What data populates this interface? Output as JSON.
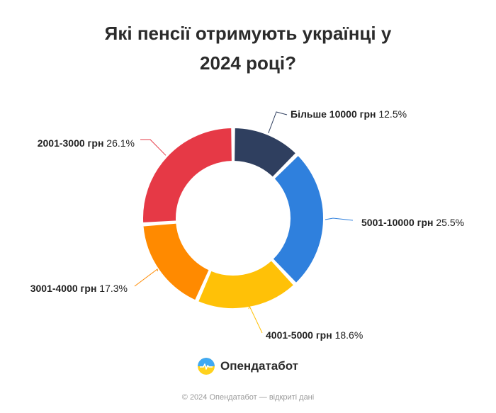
{
  "title": {
    "line1": "Які пенсії отримують українці у",
    "line2": "2024 році?"
  },
  "chart_data": {
    "type": "pie",
    "variant": "donut",
    "categories": [
      "Більше 10000 грн",
      "5001-10000 грн",
      "4001-5000 грн",
      "3001-4000 грн",
      "2001-3000 грн"
    ],
    "values": [
      12.5,
      25.5,
      18.6,
      17.3,
      26.1
    ],
    "value_labels": [
      "12.5%",
      "25.5%",
      "18.6%",
      "17.3%",
      "26.1%"
    ],
    "colors": [
      "#2f3f5f",
      "#2f80dd",
      "#ffc107",
      "#ff8a00",
      "#e63946"
    ],
    "legend": "none"
  },
  "brand": {
    "name": "Опендатабот",
    "logo_icon": "opendatabot-logo-icon",
    "logo_colors": [
      "#3fa9f5",
      "#ffd21e"
    ]
  },
  "footer": {
    "text": "© 2024 Опендатабот — відкриті дані"
  }
}
